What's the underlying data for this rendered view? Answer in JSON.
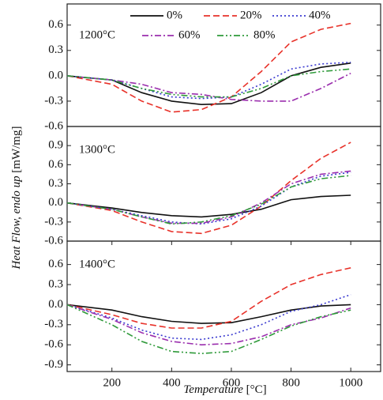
{
  "ylabel": "Heat Flow, endo up",
  "ylabel_unit": "[mW/mg]",
  "xlabel": "Temperature",
  "xlabel_unit": "[°C]",
  "chart_data": [
    {
      "type": "line",
      "label": "1200°C",
      "legend": true,
      "x": [
        50,
        200,
        300,
        400,
        500,
        600,
        700,
        800,
        900,
        1000
      ],
      "xlim": [
        50,
        1100
      ],
      "ylim": [
        -0.6,
        0.85
      ],
      "yticks": [
        -0.6,
        -0.3,
        {
          "value": 0,
          "label": "0.0"
        },
        0.3,
        0.6
      ],
      "series": [
        {
          "name": "0%",
          "color": "#111111",
          "style": "solid",
          "values": [
            0,
            -0.05,
            -0.2,
            -0.3,
            -0.34,
            -0.33,
            -0.2,
            0,
            0.1,
            0.15
          ]
        },
        {
          "name": "20%",
          "color": "#e8322a",
          "style": "dashed",
          "values": [
            0,
            -0.1,
            -0.3,
            -0.43,
            -0.4,
            -0.25,
            0.05,
            0.4,
            0.55,
            0.62
          ]
        },
        {
          "name": "40%",
          "color": "#3a3ad0",
          "style": "dotted",
          "values": [
            0,
            -0.05,
            -0.15,
            -0.25,
            -0.27,
            -0.25,
            -0.1,
            0.08,
            0.14,
            0.16
          ]
        },
        {
          "name": "60%",
          "color": "#9b2fae",
          "style": "dashdot",
          "values": [
            0,
            -0.05,
            -0.1,
            -0.2,
            -0.22,
            -0.28,
            -0.3,
            -0.3,
            -0.15,
            0.03
          ]
        },
        {
          "name": "80%",
          "color": "#2f9a3a",
          "style": "dashdotdot",
          "values": [
            0,
            -0.05,
            -0.15,
            -0.22,
            -0.25,
            -0.25,
            -0.15,
            0,
            0.05,
            0.08
          ]
        }
      ]
    },
    {
      "type": "line",
      "label": "1300°C",
      "x": [
        50,
        200,
        300,
        400,
        500,
        600,
        700,
        800,
        900,
        1000
      ],
      "xlim": [
        50,
        1100
      ],
      "ylim": [
        -0.6,
        1.2
      ],
      "yticks": [
        -0.6,
        -0.3,
        {
          "value": 0,
          "label": "0.0"
        },
        0.3,
        0.6,
        0.9
      ],
      "series": [
        {
          "name": "0%",
          "color": "#111111",
          "style": "solid",
          "values": [
            0,
            -0.08,
            -0.15,
            -0.2,
            -0.22,
            -0.18,
            -0.1,
            0.05,
            0.1,
            0.12
          ]
        },
        {
          "name": "20%",
          "color": "#e8322a",
          "style": "dashed",
          "values": [
            0,
            -0.12,
            -0.3,
            -0.45,
            -0.48,
            -0.35,
            -0.05,
            0.35,
            0.7,
            0.95
          ]
        },
        {
          "name": "40%",
          "color": "#3a3ad0",
          "style": "dotted",
          "values": [
            0,
            -0.1,
            -0.2,
            -0.3,
            -0.33,
            -0.25,
            -0.05,
            0.25,
            0.42,
            0.48
          ]
        },
        {
          "name": "60%",
          "color": "#9b2fae",
          "style": "dashdot",
          "values": [
            0,
            -0.1,
            -0.22,
            -0.32,
            -0.32,
            -0.22,
            0,
            0.3,
            0.45,
            0.5
          ]
        },
        {
          "name": "80%",
          "color": "#2f9a3a",
          "style": "dashdotdot",
          "values": [
            0,
            -0.1,
            -0.22,
            -0.33,
            -0.3,
            -0.2,
            -0.02,
            0.25,
            0.38,
            0.43
          ]
        }
      ]
    },
    {
      "type": "line",
      "label": "1400°C",
      "x": [
        50,
        200,
        300,
        400,
        500,
        600,
        700,
        800,
        900,
        1000
      ],
      "xlim": [
        50,
        1100
      ],
      "xticks": [
        200,
        400,
        600,
        800,
        1000
      ],
      "ylim": [
        -1.0,
        0.95
      ],
      "yticks": [
        -0.9,
        -0.6,
        -0.3,
        {
          "value": 0,
          "label": "0.0"
        },
        0.3,
        0.6
      ],
      "series": [
        {
          "name": "0%",
          "color": "#111111",
          "style": "solid",
          "values": [
            0,
            -0.08,
            -0.18,
            -0.25,
            -0.28,
            -0.27,
            -0.18,
            -0.08,
            -0.02,
            0
          ]
        },
        {
          "name": "20%",
          "color": "#e8322a",
          "style": "dashed",
          "values": [
            0,
            -0.15,
            -0.28,
            -0.35,
            -0.35,
            -0.25,
            0.05,
            0.3,
            0.45,
            0.55
          ]
        },
        {
          "name": "40%",
          "color": "#3a3ad0",
          "style": "dotted",
          "values": [
            0,
            -0.2,
            -0.38,
            -0.5,
            -0.52,
            -0.45,
            -0.3,
            -0.1,
            0,
            0.15
          ]
        },
        {
          "name": "60%",
          "color": "#9b2fae",
          "style": "dashdot",
          "values": [
            0,
            -0.22,
            -0.42,
            -0.55,
            -0.6,
            -0.58,
            -0.48,
            -0.3,
            -0.2,
            -0.05
          ]
        },
        {
          "name": "80%",
          "color": "#2f9a3a",
          "style": "dashdotdot",
          "values": [
            0,
            -0.3,
            -0.55,
            -0.7,
            -0.73,
            -0.7,
            -0.52,
            -0.32,
            -0.18,
            -0.08
          ]
        }
      ]
    }
  ]
}
